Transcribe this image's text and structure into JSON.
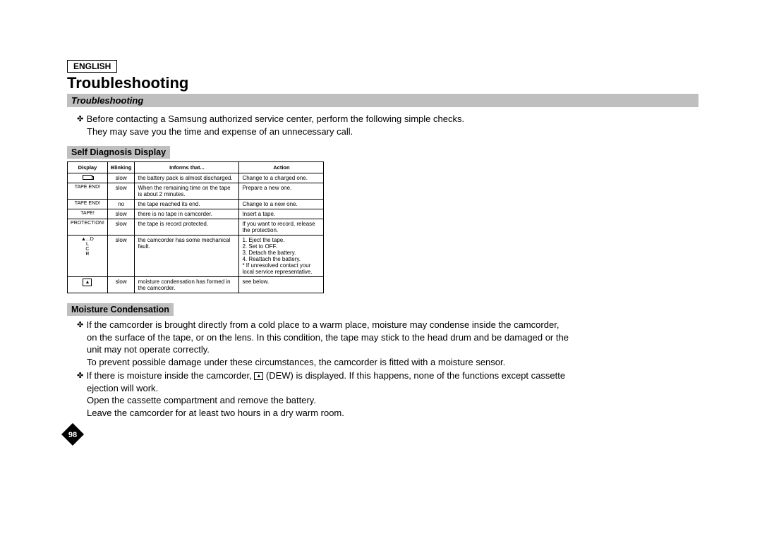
{
  "lang": "ENGLISH",
  "title": "Troubleshooting",
  "sectionBar": "Troubleshooting",
  "intro": {
    "line1": "Before contacting a Samsung authorized service center, perform the following simple checks.",
    "line2": "They may save you the time and expense of an unnecessary call."
  },
  "selfDiagLabel": "Self Diagnosis Display",
  "table": {
    "headers": {
      "c1": "Display",
      "c2": "Blinking",
      "c3": "Informs that...",
      "c4": "Action"
    },
    "rows": [
      {
        "display": "BATTICON",
        "blinking": "slow",
        "informs": "the battery pack is almost discharged.",
        "action": "Change to a charged one."
      },
      {
        "display": "TAPE END!",
        "blinking": "slow",
        "informs": "When the remaining time on the tape is about 2 minutes.",
        "action": "Prepare a new one."
      },
      {
        "display": "TAPE END!",
        "blinking": "no",
        "informs": "the tape reached its end.",
        "action": "Change to a new one."
      },
      {
        "display": "TAPE!",
        "blinking": "slow",
        "informs": "there is no tape in camcorder.",
        "action": "Insert a tape."
      },
      {
        "display": "PROTECTION!",
        "blinking": "slow",
        "informs": "the tape is record protected.",
        "action": "If you want to record, release the protection."
      },
      {
        "display": "▲...D\nL\nC\nR",
        "blinking": "slow",
        "informs": "the camcorder has some mechanical fault.",
        "action": "1. Eject the tape.\n2. Set to OFF.\n3. Detach the battery.\n4. Reattach the battery.\n* If unresolved contact your\n  local service representative."
      },
      {
        "display": "DEWICON",
        "blinking": "slow",
        "informs": "moisture condensation has formed in the camcorder.",
        "action": "see below."
      }
    ]
  },
  "moistureLabel": "Moisture Condensation",
  "moisture": {
    "b1a": "If the camcorder is brought directly from a cold place to a warm place, moisture may condense inside the camcorder,",
    "b1b": "on the surface of the tape, or on the lens. In this condition, the tape may stick to the head drum and be damaged or the",
    "b1c": "unit may not operate correctly.",
    "b2": "To prevent possible damage under these circumstances, the camcorder is fitted with a moisture sensor.",
    "b3a_pre": "If there is moisture inside the camcorder, ",
    "b3a_post": " (DEW) is displayed. If this happens, none of the functions except cassette",
    "b3b": "ejection will work.",
    "b3c": "Open the cassette compartment and remove the battery.",
    "b3d": "Leave the camcorder for at least two hours in a dry warm room."
  },
  "pageNumber": "98"
}
